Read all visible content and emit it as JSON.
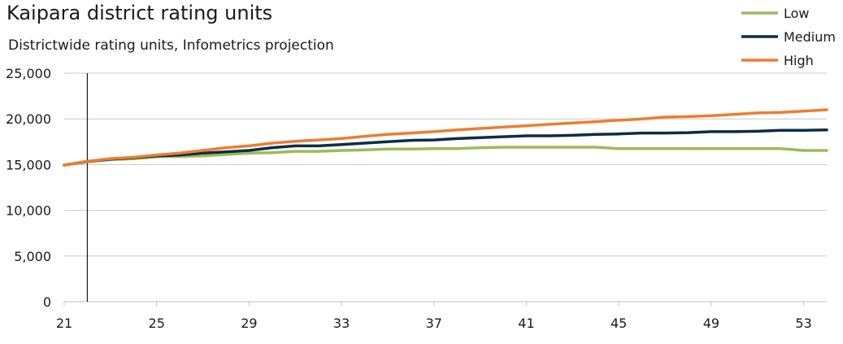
{
  "chart_data": {
    "type": "line",
    "title": "Kaipara district rating units",
    "subtitle": "Districtwide rating units, Infometrics projection",
    "xlabel": "",
    "ylabel": "",
    "x": [
      21,
      22,
      23,
      24,
      25,
      26,
      27,
      28,
      29,
      30,
      31,
      32,
      33,
      34,
      35,
      36,
      37,
      38,
      39,
      40,
      41,
      42,
      43,
      44,
      45,
      46,
      47,
      48,
      49,
      50,
      51,
      52,
      53,
      54
    ],
    "xlim": [
      21,
      54
    ],
    "ylim": [
      0,
      25000
    ],
    "x_tick_labels": [
      "21",
      "25",
      "29",
      "33",
      "37",
      "41",
      "45",
      "49",
      "53"
    ],
    "y_tick_labels": [
      "0",
      "5,000",
      "10,000",
      "15,000",
      "20,000",
      "25,000"
    ],
    "vertical_marker_x": 22,
    "grid": "horizontal",
    "legend_position": "top-right",
    "series": [
      {
        "name": "Low",
        "color": "#9bbb59",
        "values": [
          14950,
          15300,
          15550,
          15650,
          15850,
          15900,
          15950,
          16100,
          16250,
          16300,
          16450,
          16450,
          16550,
          16600,
          16700,
          16700,
          16750,
          16750,
          16850,
          16900,
          16900,
          16900,
          16900,
          16900,
          16750,
          16750,
          16750,
          16750,
          16750,
          16750,
          16750,
          16750,
          16550,
          16550
        ]
      },
      {
        "name": "Medium",
        "color": "#0d2d44",
        "values": [
          14950,
          15350,
          15600,
          15750,
          15950,
          16050,
          16250,
          16400,
          16550,
          16850,
          17050,
          17050,
          17200,
          17350,
          17500,
          17650,
          17700,
          17850,
          17950,
          18050,
          18150,
          18150,
          18200,
          18300,
          18350,
          18450,
          18450,
          18500,
          18600,
          18600,
          18650,
          18750,
          18750,
          18800
        ]
      },
      {
        "name": "High",
        "color": "#ed7d31",
        "values": [
          14950,
          15350,
          15650,
          15800,
          16050,
          16250,
          16550,
          16850,
          17050,
          17350,
          17550,
          17700,
          17850,
          18100,
          18300,
          18450,
          18600,
          18800,
          18950,
          19100,
          19250,
          19400,
          19550,
          19700,
          19850,
          20000,
          20200,
          20250,
          20350,
          20500,
          20650,
          20700,
          20850,
          21000
        ]
      }
    ]
  }
}
